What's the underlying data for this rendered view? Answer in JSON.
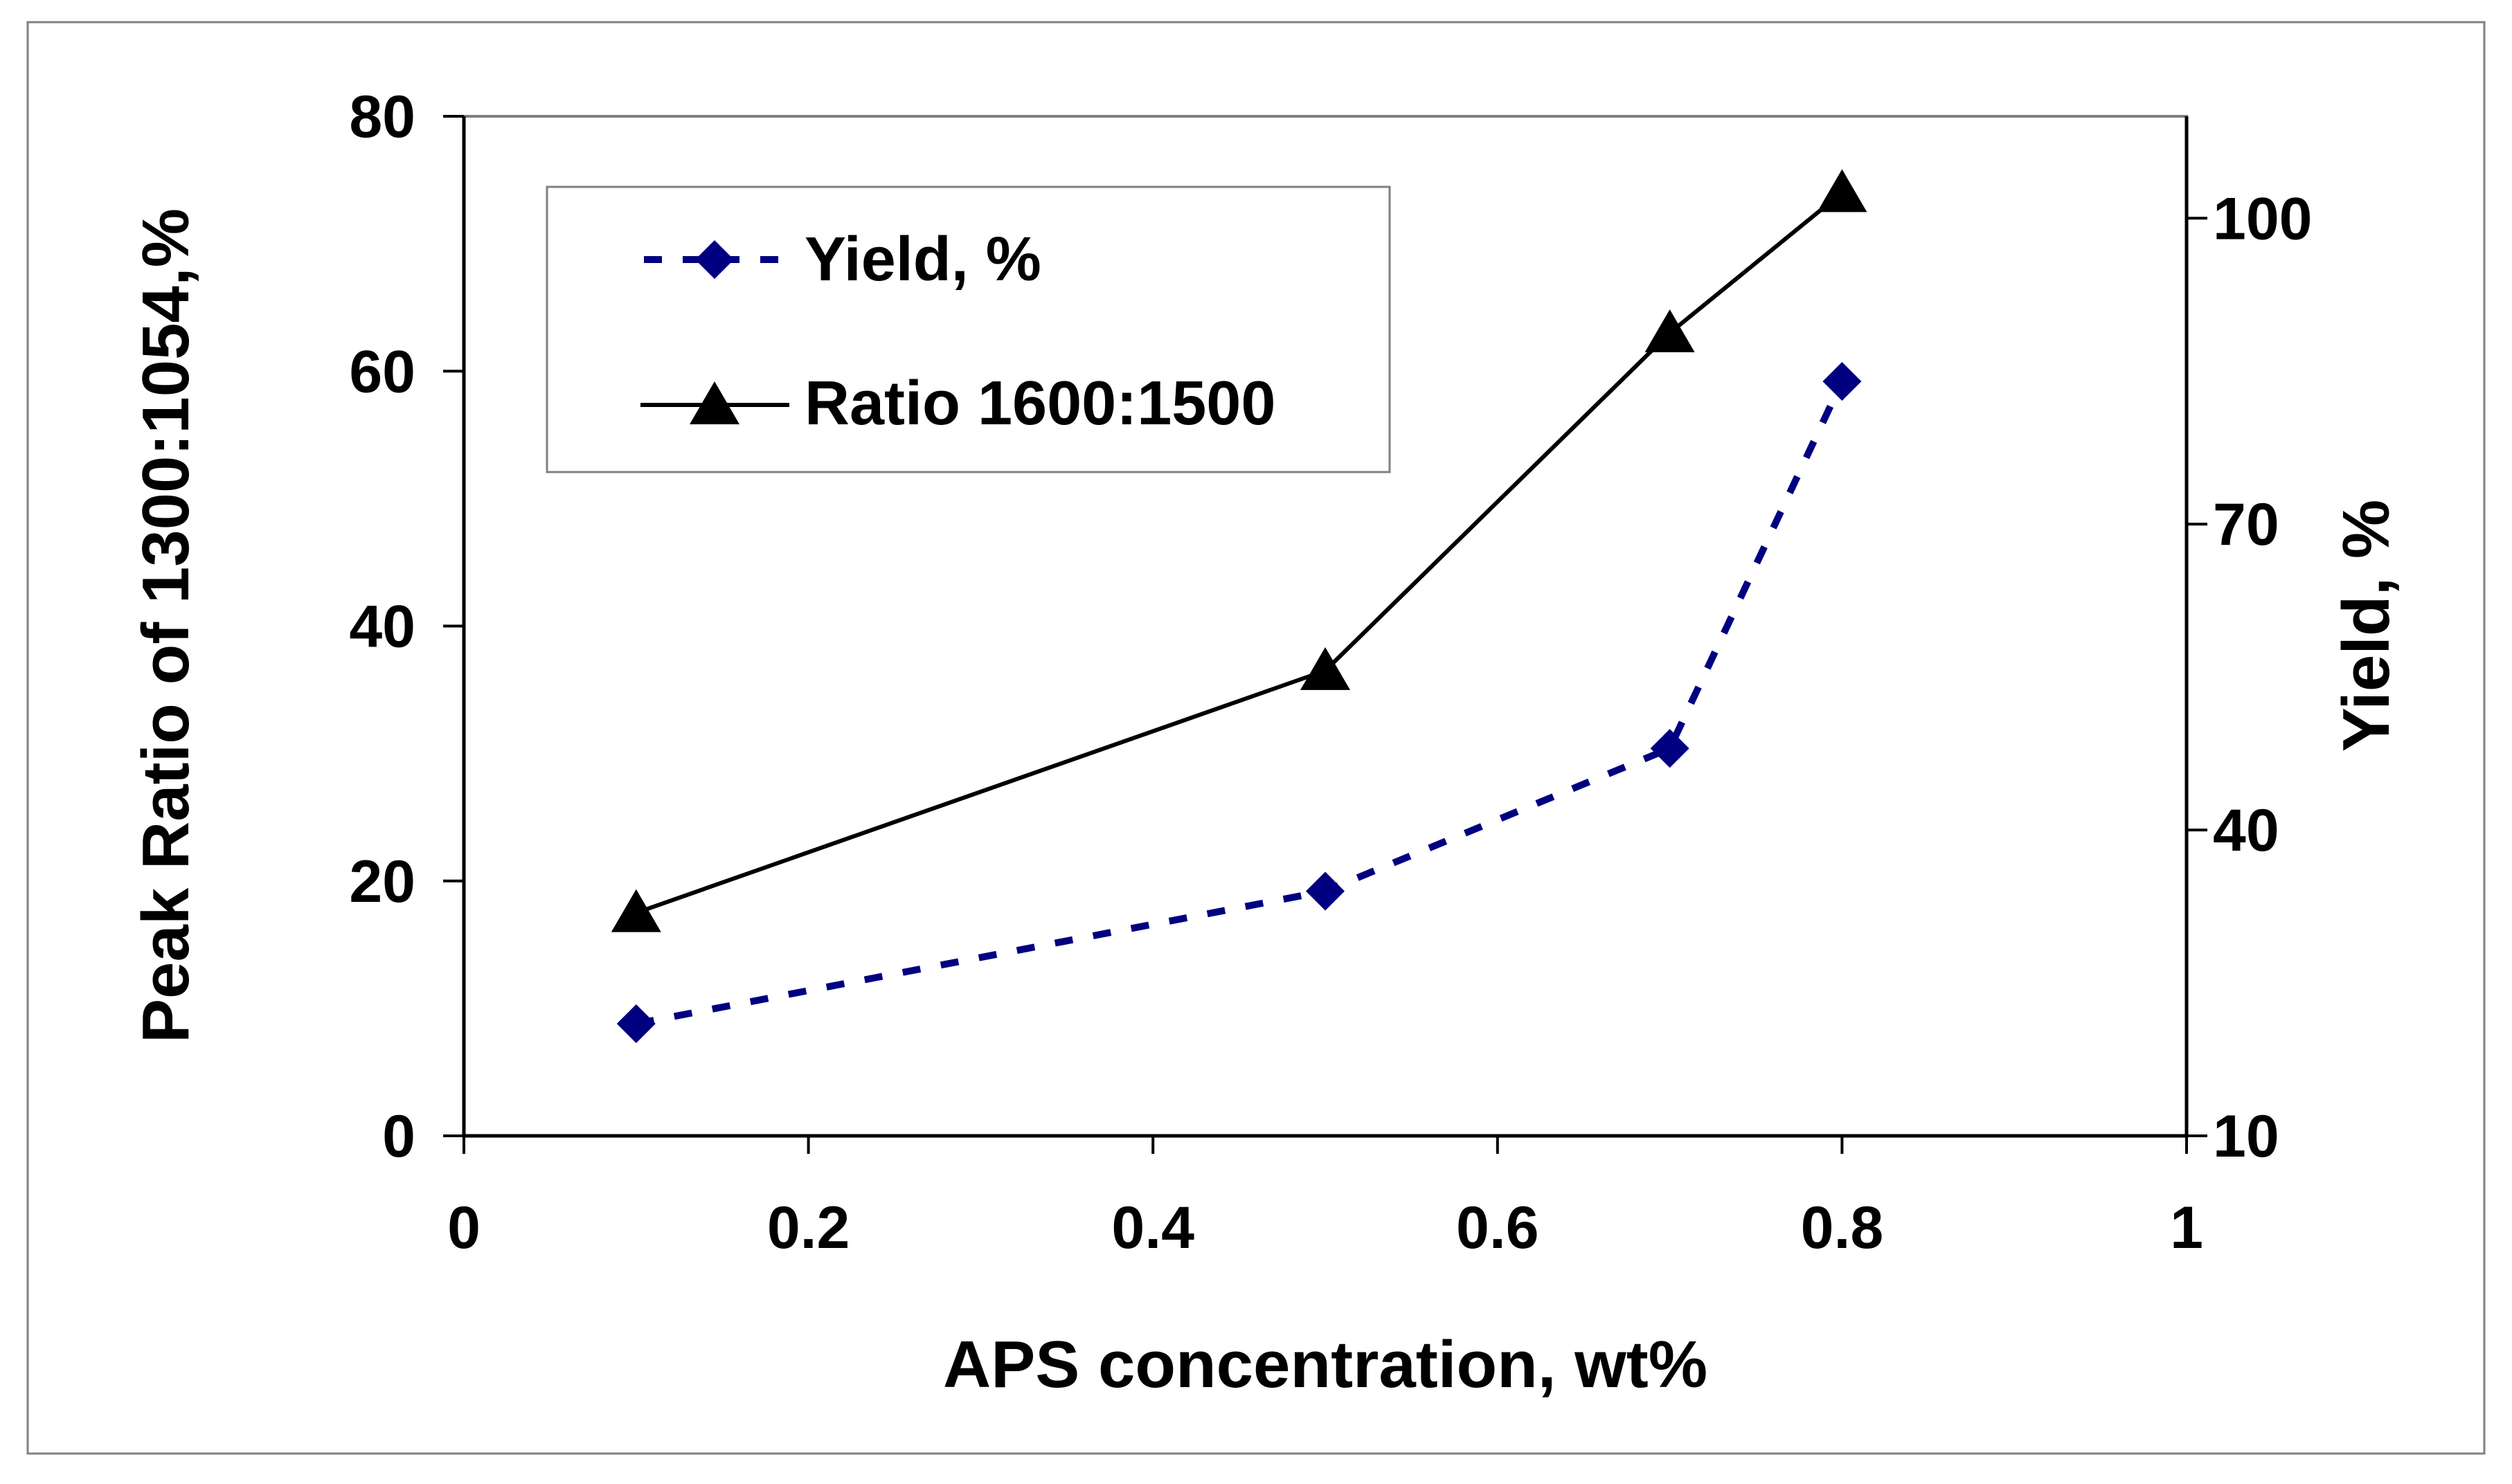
{
  "chart_data": {
    "type": "line",
    "title": "",
    "xlabel": "APS concentration, wt%",
    "ylabel_left": "Peak Ratio of 1300:1054,%",
    "ylabel_right": "Yield, %",
    "xlim": [
      0,
      1
    ],
    "ylim_left": [
      0,
      80
    ],
    "ylim_right": [
      10,
      110
    ],
    "x_ticks": [
      "0",
      "0.2",
      "0.4",
      "0.6",
      "0.8",
      "1"
    ],
    "x_tick_values": [
      0,
      0.2,
      0.4,
      0.6,
      0.8,
      1
    ],
    "y_left_ticks": [
      "0",
      "20",
      "40",
      "60",
      "80"
    ],
    "y_left_tick_values": [
      0,
      20,
      40,
      60,
      80
    ],
    "y_right_ticks": [
      "10",
      "40",
      "70",
      "100"
    ],
    "y_right_tick_values": [
      10,
      40,
      70,
      100
    ],
    "legend_position": "top-left",
    "series": [
      {
        "name": "Yield, %",
        "axis": "right",
        "style": "dashed",
        "marker": "diamond",
        "color": "#000080",
        "x": [
          0.1,
          0.5,
          0.7,
          0.8
        ],
        "values": [
          21,
          34,
          48,
          84
        ]
      },
      {
        "name": "Ratio 1600:1500",
        "axis": "left",
        "style": "solid",
        "marker": "triangle",
        "color": "#000000",
        "x": [
          0.1,
          0.5,
          0.7,
          0.8
        ],
        "values": [
          17.5,
          36.5,
          63,
          74
        ]
      }
    ]
  }
}
